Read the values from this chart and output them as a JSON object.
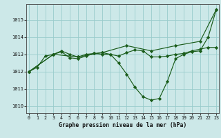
{
  "title": "Graphe pression niveau de la mer (hPa)",
  "bg_color": "#cce8e8",
  "grid_color": "#99cccc",
  "line_color": "#1a5c1a",
  "marker_color": "#1a5c1a",
  "xlim": [
    -0.3,
    23.3
  ],
  "ylim": [
    1009.6,
    1015.9
  ],
  "yticks": [
    1010,
    1011,
    1012,
    1013,
    1014,
    1015
  ],
  "xticks": [
    0,
    1,
    2,
    3,
    4,
    5,
    6,
    7,
    8,
    9,
    10,
    11,
    12,
    13,
    14,
    15,
    16,
    17,
    18,
    19,
    20,
    21,
    22,
    23
  ],
  "series1_dip": {
    "x": [
      0,
      1,
      2,
      3,
      4,
      5,
      6,
      7,
      8,
      9,
      10,
      11,
      12,
      13,
      14,
      15,
      16,
      17,
      18,
      19,
      20,
      21,
      22,
      23
    ],
    "y": [
      1012.0,
      1012.25,
      1012.9,
      1013.0,
      1013.15,
      1012.8,
      1012.75,
      1012.9,
      1013.05,
      1013.1,
      1013.0,
      1012.5,
      1011.85,
      1011.1,
      1010.55,
      1010.35,
      1010.45,
      1011.45,
      1012.75,
      1013.0,
      1013.15,
      1013.2,
      1014.0,
      1015.6
    ]
  },
  "series2_flat": {
    "x": [
      0,
      3,
      4,
      5,
      6,
      7,
      8,
      9,
      10,
      11,
      12,
      13,
      14,
      15,
      16,
      17,
      18,
      19,
      20,
      21,
      22,
      23
    ],
    "y": [
      1012.0,
      1013.0,
      1013.2,
      1013.0,
      1012.85,
      1013.0,
      1013.05,
      1013.0,
      1013.0,
      1012.9,
      1013.1,
      1013.25,
      1013.2,
      1012.85,
      1012.85,
      1012.9,
      1013.0,
      1013.05,
      1013.2,
      1013.3,
      1013.4,
      1013.4
    ]
  },
  "series3_trend": {
    "x": [
      0,
      3,
      6,
      9,
      12,
      15,
      18,
      21,
      23
    ],
    "y": [
      1012.0,
      1013.0,
      1012.85,
      1013.1,
      1013.5,
      1013.2,
      1013.5,
      1013.75,
      1015.6
    ]
  }
}
